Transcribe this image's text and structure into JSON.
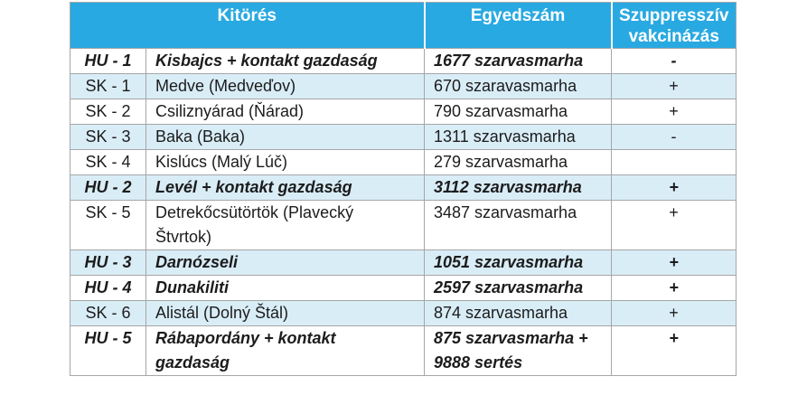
{
  "table": {
    "headers": {
      "outbreak": "Kitörés",
      "count": "Egyedszám",
      "vaccination": "Szuppresszív vakcinázás"
    },
    "rows": [
      {
        "code": "HU - 1",
        "place": "Kisbajcs + kontakt gazdaság",
        "count": "1677 szarvasmarha",
        "vaccination": "-",
        "emphasis": true,
        "shaded": false
      },
      {
        "code": "SK - 1",
        "place": "Medve (Medveďov)",
        "count": "670 szaravasmarha",
        "vaccination": "+",
        "emphasis": false,
        "shaded": true
      },
      {
        "code": "SK - 2",
        "place": "Csiliznyárad (Ňárad)",
        "count": "790 szarvasmarha",
        "vaccination": "+",
        "emphasis": false,
        "shaded": false
      },
      {
        "code": "SK - 3",
        "place": "Baka (Baka)",
        "count": "1311 szarvasmarha",
        "vaccination": "-",
        "emphasis": false,
        "shaded": true
      },
      {
        "code": "SK - 4",
        "place": "Kislúcs (Malý Lúč)",
        "count": "279 szarvasmarha",
        "vaccination": "",
        "emphasis": false,
        "shaded": false
      },
      {
        "code": "HU - 2",
        "place": "Levél + kontakt gazdaság",
        "count": "3112 szarvasmarha",
        "vaccination": "+",
        "emphasis": true,
        "shaded": true
      },
      {
        "code": "SK - 5",
        "place": "Detrekőcsütörtök (Plavecký\nŠtvrtok)",
        "count": "3487 szarvasmarha",
        "vaccination": "+",
        "emphasis": false,
        "shaded": false
      },
      {
        "code": "HU - 3",
        "place": "Darnózseli",
        "count": "1051 szarvasmarha",
        "vaccination": "+",
        "emphasis": true,
        "shaded": true
      },
      {
        "code": "HU - 4",
        "place": "Dunakiliti",
        "count": "2597 szarvasmarha",
        "vaccination": "+",
        "emphasis": true,
        "shaded": false
      },
      {
        "code": "SK - 6",
        "place": "Alistál (Dolný Štál)",
        "count": "874 szarvasmarha",
        "vaccination": "+",
        "emphasis": false,
        "shaded": true
      },
      {
        "code": "HU - 5",
        "place": "Rábapordány + kontakt\ngazdaság",
        "count": "875 szarvasmarha +\n9888 sertés",
        "vaccination": "+",
        "emphasis": true,
        "shaded": false
      }
    ],
    "colors": {
      "header_bg": "#29A9E1",
      "shaded_row_bg": "#D9EDF7",
      "border": "#A6A6A6",
      "header_text": "#FFFFFF",
      "body_text": "#1C1C1C"
    }
  }
}
